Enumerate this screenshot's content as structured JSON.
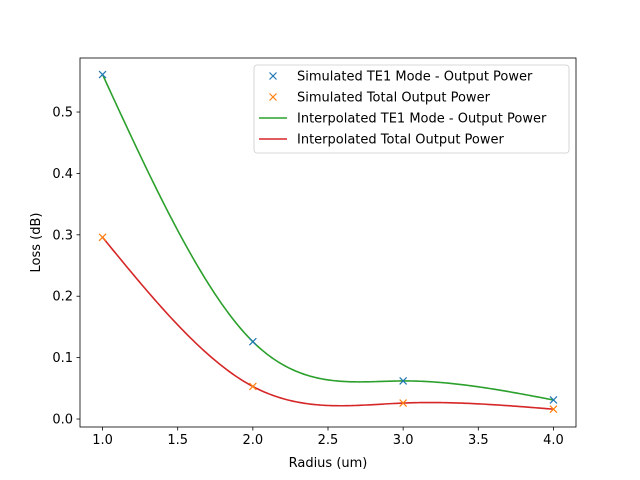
{
  "chart_data": {
    "type": "line",
    "title": "",
    "xlabel": "Radius (um)",
    "ylabel": "Loss (dB)",
    "xlim": [
      0.85,
      4.15
    ],
    "ylim": [
      -0.013,
      0.588
    ],
    "xticks": [
      1.0,
      1.5,
      2.0,
      2.5,
      3.0,
      3.5,
      4.0
    ],
    "xtick_labels": [
      "1.0",
      "1.5",
      "2.0",
      "2.5",
      "3.0",
      "3.5",
      "4.0"
    ],
    "yticks": [
      0.0,
      0.1,
      0.2,
      0.3,
      0.4,
      0.5
    ],
    "ytick_labels": [
      "0.0",
      "0.1",
      "0.2",
      "0.3",
      "0.4",
      "0.5"
    ],
    "grid": false,
    "legend_position": "top-right",
    "series": [
      {
        "name": "Simulated TE1 Mode - Output Power",
        "kind": "markers",
        "marker": "x",
        "color": "#1f77b4",
        "x": [
          1.0,
          2.0,
          3.0,
          4.0
        ],
        "y": [
          0.561,
          0.126,
          0.062,
          0.031
        ]
      },
      {
        "name": "Simulated Total Output Power",
        "kind": "markers",
        "marker": "x",
        "color": "#ff7f0e",
        "x": [
          1.0,
          2.0,
          3.0,
          4.0
        ],
        "y": [
          0.296,
          0.053,
          0.026,
          0.016
        ]
      },
      {
        "name": "Interpolated TE1 Mode - Output Power",
        "kind": "line",
        "color": "#2ca02c",
        "x": [
          1.0,
          2.0,
          3.0,
          4.0
        ],
        "y": [
          0.561,
          0.126,
          0.062,
          0.031
        ]
      },
      {
        "name": "Interpolated Total Output Power",
        "kind": "line",
        "color": "#d62728",
        "x": [
          1.0,
          2.0,
          3.0,
          4.0
        ],
        "y": [
          0.296,
          0.053,
          0.026,
          0.016
        ]
      }
    ]
  }
}
